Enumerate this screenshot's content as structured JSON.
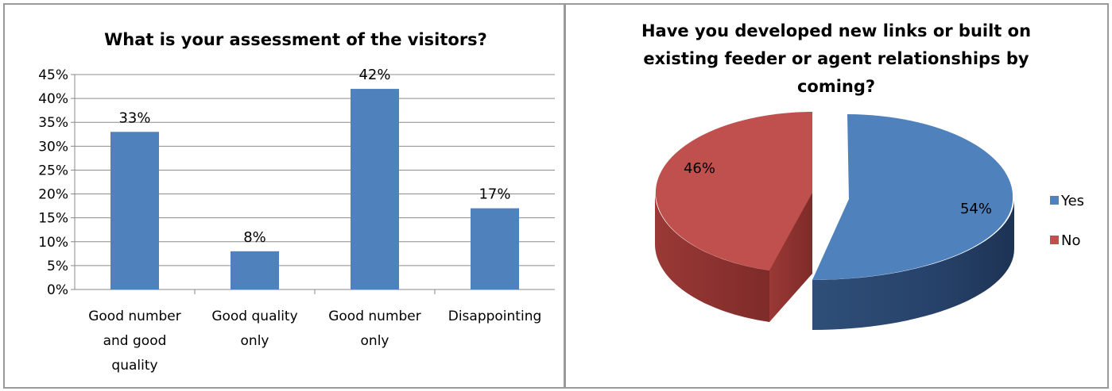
{
  "chart_data": [
    {
      "type": "bar",
      "title": "What is your assessment of the visitors?",
      "categories": [
        [
          "Good number",
          "and good",
          "quality"
        ],
        [
          "Good quality",
          "only"
        ],
        [
          "Good number",
          "only"
        ],
        [
          "Disappointing"
        ]
      ],
      "values": [
        33,
        8,
        42,
        17
      ],
      "data_labels": [
        "33%",
        "8%",
        "42%",
        "17%"
      ],
      "ylim": [
        0,
        45
      ],
      "yticks": [
        "0%",
        "5%",
        "10%",
        "15%",
        "20%",
        "25%",
        "30%",
        "35%",
        "40%",
        "45%"
      ],
      "grid": true,
      "bar_color": "#4f81bd"
    },
    {
      "type": "pie",
      "title_lines": [
        "Have you developed new links or built on",
        "existing feeder or agent relationships by",
        "coming?"
      ],
      "labels": [
        "Yes",
        "No"
      ],
      "values": [
        54,
        46
      ],
      "data_labels": [
        "54%",
        "46%"
      ],
      "colors": [
        "#4f81bd",
        "#c0504d"
      ],
      "legend": "right"
    }
  ]
}
